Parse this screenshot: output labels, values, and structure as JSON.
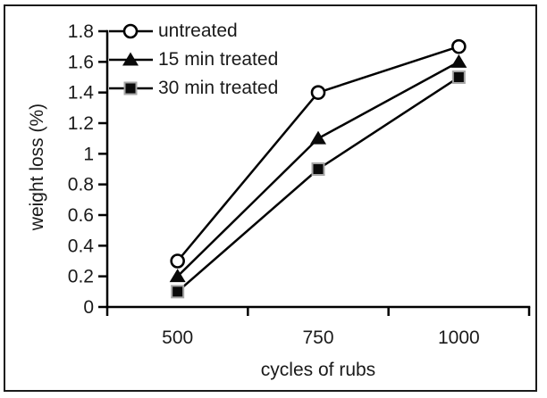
{
  "frame": {
    "border_color": "#1a1a1a",
    "background": "#ffffff"
  },
  "chart_data": {
    "type": "line",
    "title": "",
    "xlabel": "cycles of rubs",
    "ylabel": "weight loss (%)",
    "categories": [
      "500",
      "750",
      "1000"
    ],
    "x": [
      500,
      750,
      1000
    ],
    "ylim": [
      0,
      1.8
    ],
    "y_ticks": [
      0,
      0.2,
      0.4,
      0.6,
      0.8,
      1,
      1.2,
      1.4,
      1.6,
      1.8
    ],
    "y_tick_labels": [
      "0",
      "0.2",
      "0.4",
      "0.6",
      "0.8",
      "1",
      "1.2",
      "1.4",
      "1.6",
      "1.8"
    ],
    "grid": false,
    "legend_position": "top-left-inside",
    "series": [
      {
        "name": "untreated",
        "marker": "open-circle",
        "values": [
          0.3,
          1.4,
          1.7
        ]
      },
      {
        "name": "15 min treated",
        "marker": "filled-triangle",
        "values": [
          0.2,
          1.1,
          1.6
        ]
      },
      {
        "name": "30 min treated",
        "marker": "filled-square",
        "values": [
          0.1,
          0.9,
          1.5
        ]
      }
    ],
    "colors": {
      "line": "#000000",
      "axis": "#000000",
      "text": "#1a1a1a",
      "open_circle_fill": "#ffffff",
      "filled_marker_fill": "#0a0a0a",
      "filled_square_border": "#a6a6a6"
    }
  }
}
